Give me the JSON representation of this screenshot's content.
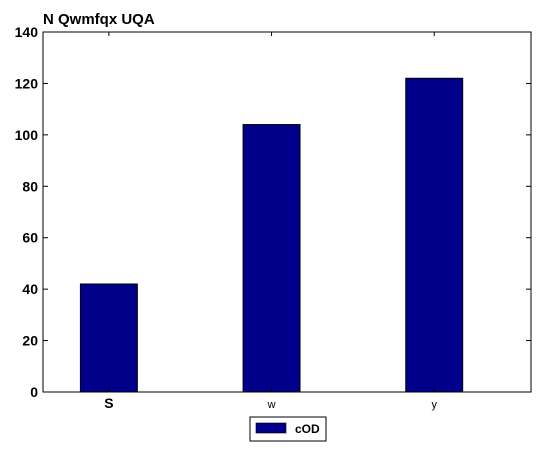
{
  "chart_data": {
    "type": "bar",
    "title": "N Qwmfqx UQA",
    "xlabel": "",
    "ylabel": "",
    "categories": [
      "S",
      "w",
      "y"
    ],
    "series": [
      {
        "name": "cOD",
        "values": [
          42,
          104,
          122
        ],
        "color": "#00008b"
      }
    ],
    "ylim": [
      0,
      140
    ],
    "yticks": [
      0,
      20,
      40,
      60,
      80,
      100,
      120,
      140
    ],
    "grid": false,
    "legend": "bottom-center"
  }
}
